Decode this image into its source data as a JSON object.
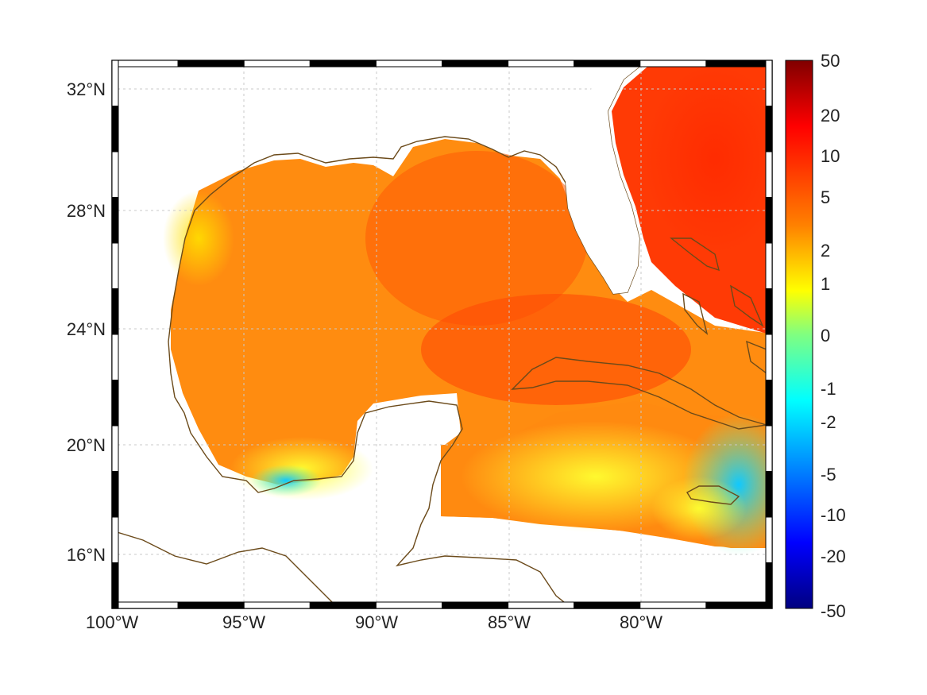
{
  "map": {
    "lon_labels": [
      "100°W",
      "95°W",
      "90°W",
      "85°W",
      "80°W"
    ],
    "lon_values": [
      -100,
      -95,
      -90,
      -85,
      -80
    ],
    "lat_labels": [
      "32°N",
      "28°N",
      "24°N",
      "20°N",
      "16°N"
    ],
    "lat_values": [
      32,
      28,
      24,
      20,
      16
    ],
    "lon_range": [
      -100,
      -75
    ],
    "lat_range": [
      15,
      33
    ],
    "gridlines": true,
    "colors": {
      "coastline": "#6b4a1a",
      "grid": "#bdbdbd",
      "frame": "#000000"
    }
  },
  "colorbar": {
    "labels": [
      "50",
      "20",
      "10",
      "5",
      "2",
      "1",
      "0",
      "-1",
      "-2",
      "-5",
      "-10",
      "-20",
      "-50"
    ],
    "colormap": "jet",
    "colors": [
      "#800000",
      "#ff0000",
      "#ff8000",
      "#ffff00",
      "#80ff80",
      "#00ffff",
      "#0080ff",
      "#0000ff",
      "#000080"
    ]
  }
}
